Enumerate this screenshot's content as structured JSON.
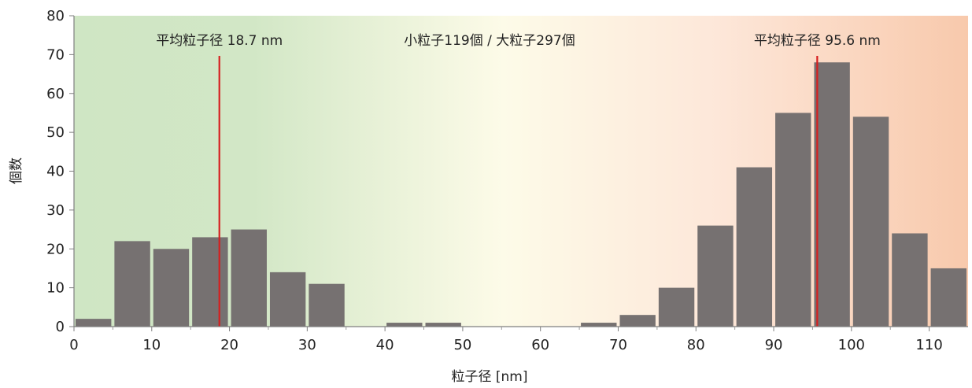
{
  "chart_data": {
    "type": "bar",
    "xlabel": "粒子径 [nm]",
    "ylabel": "個数",
    "xlim": [
      0,
      115
    ],
    "ylim": [
      0,
      80
    ],
    "x_ticks": [
      0,
      10,
      20,
      30,
      40,
      50,
      60,
      70,
      80,
      90,
      100,
      110
    ],
    "y_ticks": [
      0,
      10,
      20,
      30,
      40,
      50,
      60,
      70,
      80
    ],
    "bin_width": 5,
    "bar_color": "#767171",
    "bins": [
      {
        "start": 0,
        "value": 2
      },
      {
        "start": 5,
        "value": 22
      },
      {
        "start": 10,
        "value": 20
      },
      {
        "start": 15,
        "value": 23
      },
      {
        "start": 20,
        "value": 25
      },
      {
        "start": 25,
        "value": 14
      },
      {
        "start": 30,
        "value": 11
      },
      {
        "start": 35,
        "value": 0
      },
      {
        "start": 40,
        "value": 1
      },
      {
        "start": 45,
        "value": 1
      },
      {
        "start": 50,
        "value": 0
      },
      {
        "start": 55,
        "value": 0
      },
      {
        "start": 60,
        "value": 0
      },
      {
        "start": 65,
        "value": 1
      },
      {
        "start": 70,
        "value": 3
      },
      {
        "start": 75,
        "value": 10
      },
      {
        "start": 80,
        "value": 26
      },
      {
        "start": 85,
        "value": 41
      },
      {
        "start": 90,
        "value": 55
      },
      {
        "start": 95,
        "value": 68
      },
      {
        "start": 100,
        "value": 54
      },
      {
        "start": 105,
        "value": 24
      },
      {
        "start": 110,
        "value": 15
      }
    ],
    "mean_lines": [
      {
        "x": 18.7,
        "label": "平均粒子径 18.7 nm",
        "color": "#d62020"
      },
      {
        "x": 95.6,
        "label": "平均粒子径 95.6 nm",
        "color": "#d62020"
      }
    ],
    "center_annotation": "小粒子119個 / 大粒子297個",
    "background_gradient": {
      "left_color": "#cfe6c4",
      "middle_color": "#fdfbe8",
      "right_color": "#f8c9ac"
    }
  }
}
